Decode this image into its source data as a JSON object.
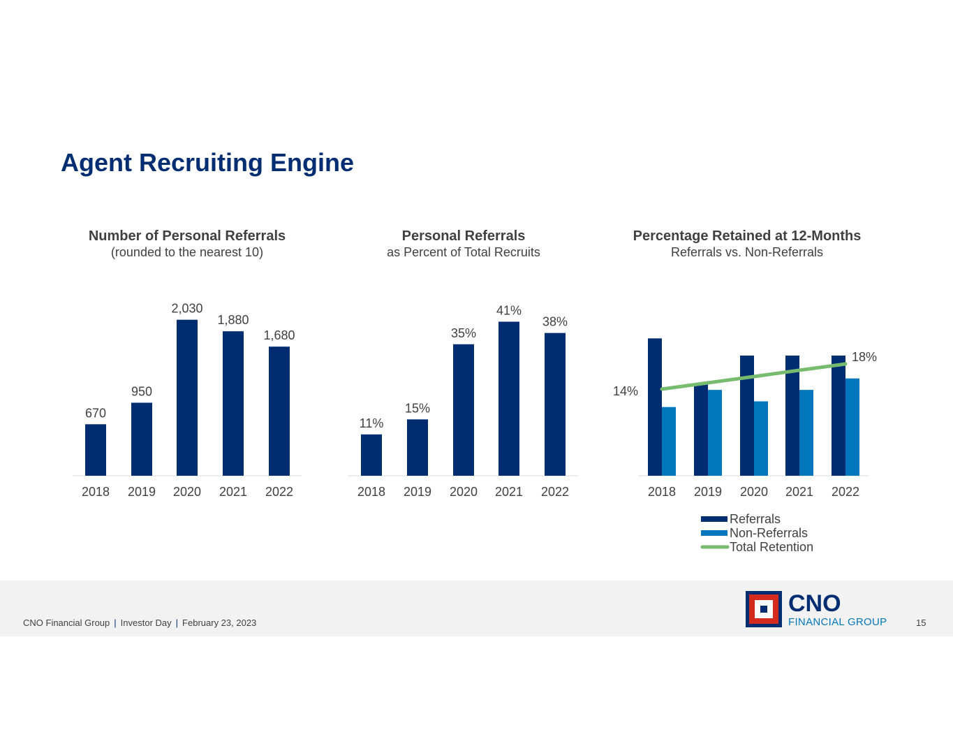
{
  "page": {
    "title": "Agent Recruiting Engine",
    "footer": {
      "company": "CNO Financial Group",
      "event": "Investor Day",
      "date": "February 23, 2023",
      "separator": "|",
      "page_number": "15"
    },
    "logo": {
      "word": "CNO",
      "sub": "FINANCIAL GROUP"
    }
  },
  "colors": {
    "navy": "#002d72",
    "light_blue": "#0077bc",
    "green": "#77bc6e",
    "text": "#404040"
  },
  "chart_data": [
    {
      "type": "bar",
      "title": "Number of Personal Referrals",
      "subtitle": "(rounded to the nearest 10)",
      "categories": [
        "2018",
        "2019",
        "2020",
        "2021",
        "2022"
      ],
      "values": [
        670,
        950,
        2030,
        1880,
        1680
      ],
      "labels": [
        "670",
        "950",
        "2,030",
        "1,880",
        "1,680"
      ],
      "ylim": [
        0,
        2200
      ],
      "color": "#002d72"
    },
    {
      "type": "bar",
      "title": "Personal Referrals",
      "subtitle": "as Percent of Total Recruits",
      "categories": [
        "2018",
        "2019",
        "2020",
        "2021",
        "2022"
      ],
      "values": [
        11,
        15,
        35,
        41,
        38
      ],
      "labels": [
        "11%",
        "15%",
        "35%",
        "41%",
        "38%"
      ],
      "ylim": [
        0,
        45
      ],
      "color": "#002d72"
    },
    {
      "type": "bar",
      "title": "Percentage Retained at 12-Months",
      "subtitle": "Referrals vs. Non-Referrals",
      "categories": [
        "2018",
        "2019",
        "2020",
        "2021",
        "2022"
      ],
      "series": [
        {
          "name": "Referrals",
          "values": [
            24,
            16,
            21,
            21,
            21
          ],
          "color": "#002d72"
        },
        {
          "name": "Non-Referrals",
          "values": [
            12,
            15,
            13,
            15,
            17
          ],
          "color": "#0077bc"
        },
        {
          "name": "Total Retention",
          "type": "line",
          "values": [
            14,
            15,
            16,
            17,
            18
          ],
          "color": "#77bc6e"
        }
      ],
      "line_labels": [
        {
          "index": 0,
          "text": "14%",
          "side": "left"
        },
        {
          "index": 4,
          "text": "18%",
          "side": "right"
        }
      ],
      "ylim": [
        0,
        26
      ],
      "legend_position": "bottom"
    }
  ]
}
